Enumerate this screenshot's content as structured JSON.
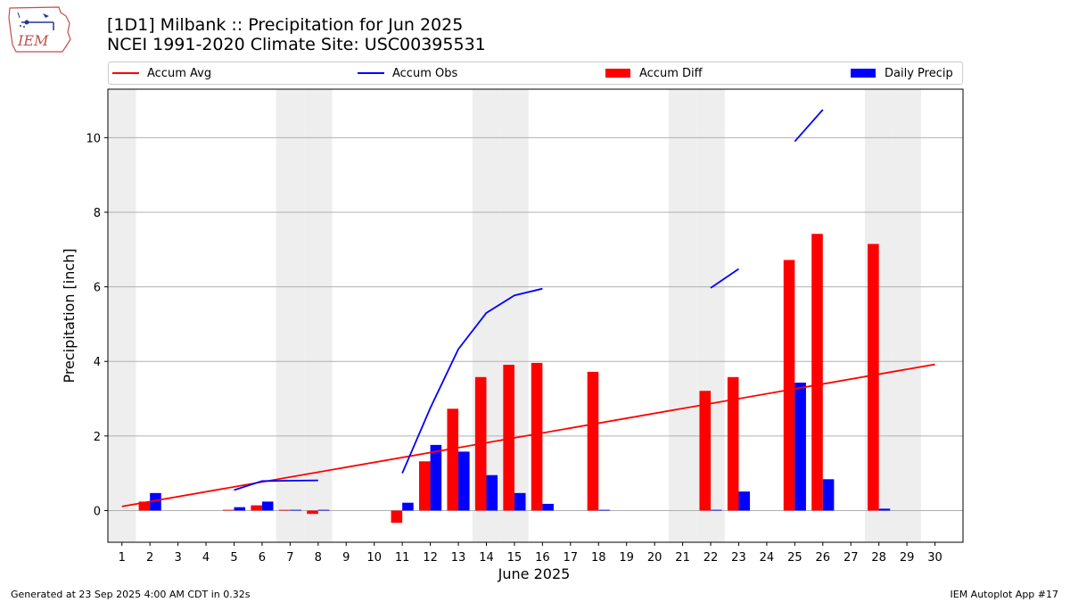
{
  "header": {
    "title_line1": "[1D1] Milbank :: Precipitation for Jun 2025",
    "title_line2": "NCEI 1991-2020 Climate Site: USC00395531"
  },
  "logo": {
    "text": "IEM",
    "icon": "iem-iowa-logo-icon"
  },
  "footer": {
    "generated": "Generated at 23 Sep 2025 4:00 AM CDT in 0.32s",
    "app": "IEM Autoplot App #17"
  },
  "colors": {
    "avg": "#ff0000",
    "obs": "#0000ff",
    "diff": "#ff0000",
    "daily": "#0000ff",
    "weekend": "#eeeeee",
    "grid": "#b0b0b0"
  },
  "legend": {
    "accum_avg": "Accum Avg",
    "accum_obs": "Accum Obs",
    "accum_diff": "Accum Diff",
    "daily_precip": "Daily Precip"
  },
  "chart_data": {
    "type": "bar",
    "xlabel": "June 2025",
    "ylabel": "Precipitation [inch]",
    "xlim": [
      0.5,
      31
    ],
    "ylim": [
      -0.85,
      11.3
    ],
    "x_ticks": [
      1,
      2,
      3,
      4,
      5,
      6,
      7,
      8,
      9,
      10,
      11,
      12,
      13,
      14,
      15,
      16,
      17,
      18,
      19,
      20,
      21,
      22,
      23,
      24,
      25,
      26,
      27,
      28,
      29,
      30
    ],
    "y_ticks": [
      0,
      2,
      4,
      6,
      8,
      10
    ],
    "grid": "y",
    "legend_position": "top",
    "weekend_days": [
      1,
      7,
      8,
      14,
      15,
      21,
      22,
      28,
      29
    ],
    "accum_avg": {
      "x": [
        1,
        30
      ],
      "y": [
        0.11,
        3.92
      ]
    },
    "accum_obs_segments": [
      {
        "x": [
          5,
          6,
          7,
          8
        ],
        "y": [
          0.55,
          0.79,
          0.8,
          0.81
        ]
      },
      {
        "x": [
          11,
          12,
          13,
          14,
          15,
          16
        ],
        "y": [
          1.0,
          2.75,
          4.33,
          5.3,
          5.77,
          5.95
        ]
      },
      {
        "x": [
          22,
          23
        ],
        "y": [
          5.97,
          6.48
        ]
      },
      {
        "x": [
          25,
          26
        ],
        "y": [
          9.9,
          10.75
        ]
      }
    ],
    "series": [
      {
        "name": "Accum Diff",
        "days": [
          2,
          5,
          6,
          7,
          8,
          11,
          12,
          13,
          14,
          15,
          16,
          18,
          22,
          23,
          25,
          26,
          28
        ],
        "values": [
          0.24,
          0.02,
          0.14,
          0.02,
          -0.09,
          -0.33,
          1.32,
          2.73,
          3.58,
          3.91,
          3.96,
          3.72,
          3.21,
          3.58,
          6.72,
          7.42,
          7.15
        ]
      },
      {
        "name": "Daily Precip",
        "days": [
          2,
          5,
          6,
          7,
          8,
          11,
          12,
          13,
          14,
          15,
          16,
          18,
          22,
          23,
          25,
          26,
          28
        ],
        "values": [
          0.47,
          0.09,
          0.24,
          0.02,
          0.02,
          0.21,
          1.76,
          1.58,
          0.95,
          0.47,
          0.18,
          0.02,
          0.02,
          0.51,
          3.43,
          0.84,
          0.05
        ]
      }
    ]
  }
}
